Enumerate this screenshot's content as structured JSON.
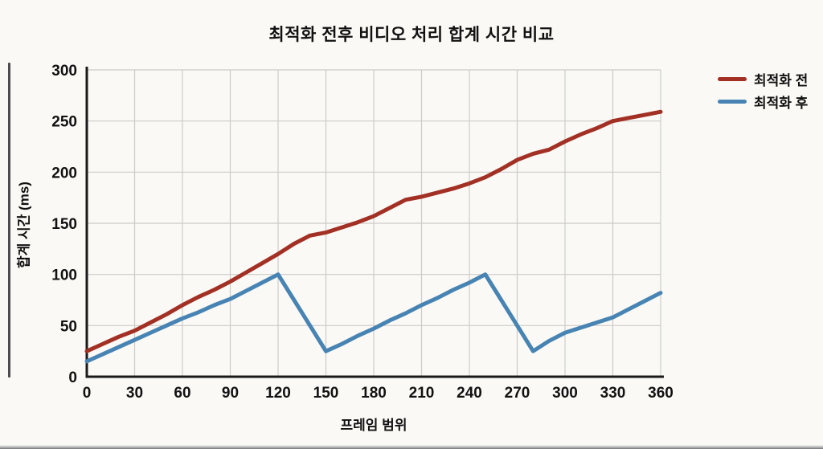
{
  "page": {
    "background": "#FBF9F5",
    "left_edge_color": "#2E2E30",
    "bottom_edge_color": "#6E6E74",
    "gridline_color": "#CBCBC8",
    "axis_color": "#1A1A1A",
    "text_color": "#111111"
  },
  "chart_data": {
    "type": "line",
    "title": "최적화 전후 비디오 처리 합계 시간 비교",
    "xlabel": "프레임 범위",
    "ylabel": "합계 시간 (ms)",
    "xlim": [
      0,
      360
    ],
    "ylim": [
      0,
      300
    ],
    "x_ticks": [
      0,
      30,
      60,
      90,
      120,
      150,
      180,
      210,
      240,
      270,
      300,
      330,
      360
    ],
    "y_ticks": [
      0,
      50,
      100,
      150,
      200,
      250,
      300
    ],
    "grid": true,
    "legend_position": "top-right-outside",
    "x": [
      0,
      10,
      20,
      30,
      40,
      50,
      60,
      70,
      80,
      90,
      100,
      110,
      120,
      130,
      140,
      150,
      160,
      170,
      180,
      190,
      200,
      210,
      220,
      230,
      240,
      250,
      260,
      270,
      280,
      290,
      300,
      310,
      320,
      330,
      340,
      350,
      360
    ],
    "series": [
      {
        "name": "최적화 전",
        "color": "#A33025",
        "values": [
          25,
          32,
          39,
          45,
          53,
          61,
          70,
          78,
          85,
          93,
          102,
          111,
          120,
          130,
          138,
          141,
          146,
          151,
          157,
          165,
          173,
          176,
          180,
          184,
          189,
          195,
          203,
          212,
          218,
          222,
          230,
          237,
          243,
          250,
          253,
          256,
          259
        ]
      },
      {
        "name": "최적화 후",
        "color": "#4784B4",
        "values": [
          15,
          22,
          29,
          36,
          43,
          50,
          57,
          63,
          70,
          76,
          84,
          92,
          100,
          75,
          50,
          25,
          32,
          40,
          47,
          55,
          62,
          70,
          77,
          85,
          92,
          100,
          75,
          50,
          25,
          35,
          43,
          48,
          53,
          58,
          66,
          74,
          82
        ]
      }
    ]
  }
}
